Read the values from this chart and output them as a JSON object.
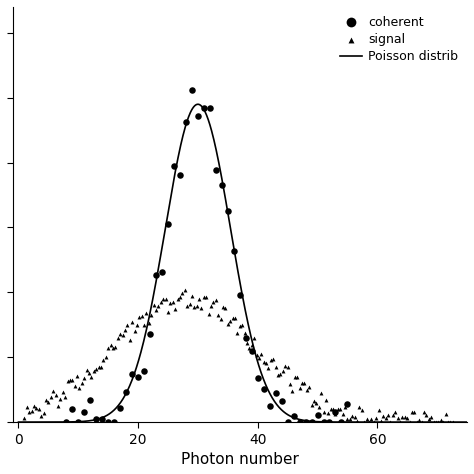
{
  "title": "",
  "xlabel": "Photon number",
  "ylabel": "",
  "xlim": [
    -1,
    75
  ],
  "ylim": [
    0,
    0.128
  ],
  "background_color": "#ffffff",
  "coherent_mean": 30.0,
  "coherent_std": 5.2,
  "coherent_peak": 0.098,
  "signal_mean": 28.0,
  "signal_std": 12.0,
  "signal_peak": 0.038,
  "poisson_mean": 30.0,
  "legend_labels": [
    "coherent",
    "signal",
    "Poisson distrib"
  ],
  "dot_color": "#000000",
  "line_color": "#000000",
  "xticks": [
    0,
    20,
    40,
    60
  ],
  "marker_size_circle": 22,
  "marker_size_triangle": 8
}
